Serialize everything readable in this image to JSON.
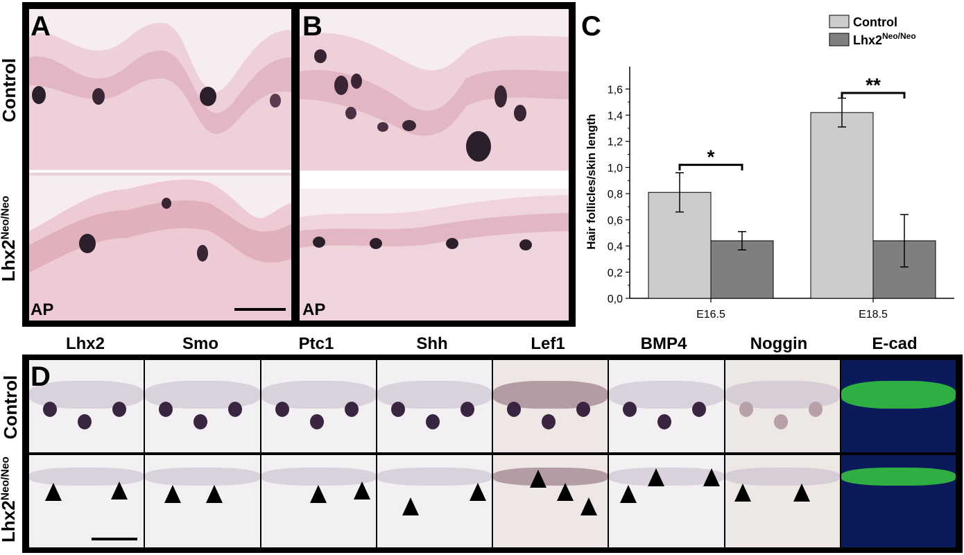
{
  "figure": {
    "panels": {
      "A": "A",
      "B": "B",
      "C": "C",
      "D": "D"
    },
    "ap_label": "AP",
    "row_labels": {
      "control": "Control",
      "mutant_base": "Lhx2",
      "mutant_sup": "Neo/Neo"
    },
    "markers": [
      "Lhx2",
      "Smo",
      "Ptc1",
      "Shh",
      "Lef1",
      "BMP4",
      "Noggin",
      "E-cad"
    ]
  },
  "chart_data": {
    "type": "bar",
    "categories": [
      "E16.5",
      "E18.5"
    ],
    "series": [
      {
        "name": "Control",
        "values": [
          0.81,
          1.42
        ],
        "errors": [
          0.15,
          0.11
        ],
        "color": "#cccccc"
      },
      {
        "name": "Lhx2",
        "name_sup": "Neo/Neo",
        "values": [
          0.44,
          0.44
        ],
        "errors": [
          0.07,
          0.2
        ],
        "color": "#7f7f7f"
      }
    ],
    "ylabel": "Hair follicles/skin length",
    "xlabel": "",
    "ylim": [
      0.0,
      1.75
    ],
    "yticks": [
      "0,0",
      "0,2",
      "0,4",
      "0,6",
      "0,8",
      "1,0",
      "1,2",
      "1,4",
      "1,6"
    ],
    "significance": [
      "*",
      "**"
    ],
    "legend_position": "top-right",
    "grid": false
  }
}
